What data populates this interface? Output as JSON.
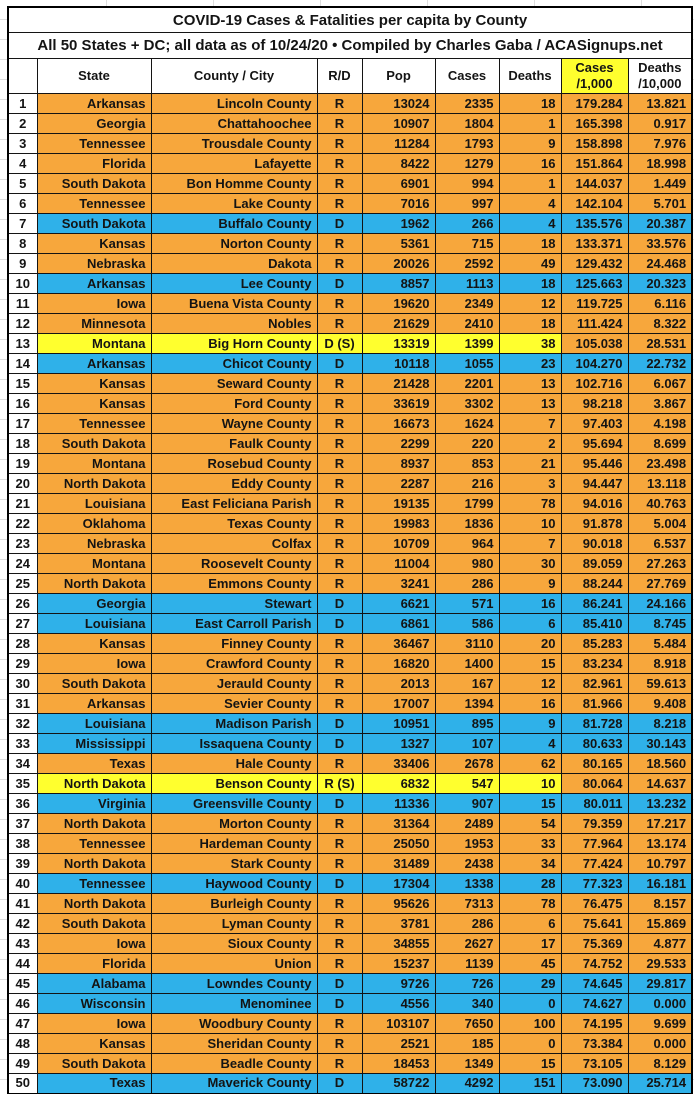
{
  "title": "COVID-19 Cases & Fatalities per capita by County",
  "subtitle": "All 50 States + DC; all data as of 10/24/20  • Compiled by Charles Gaba / ACASignups.net",
  "colors": {
    "republican_row": "#F7A73C",
    "democrat_row": "#2FB1E9",
    "special_row": "#FFFF2E",
    "cases_header_bg": "#FFFF2E",
    "border": "#141414"
  },
  "chart_data": {
    "type": "table",
    "columns": [
      "",
      "State",
      "County / City",
      "R/D",
      "Pop",
      "Cases",
      "Deaths",
      "Cases\n/1,000",
      "Deaths\n/10,000"
    ],
    "row_fields": [
      "rank",
      "state",
      "county",
      "rd",
      "pop",
      "cases",
      "deaths",
      "cases_per_1000",
      "deaths_per_10000",
      "row_color_key"
    ],
    "rows": [
      [
        1,
        "Arkansas",
        "Lincoln County",
        "R",
        "13024",
        "2335",
        "18",
        "179.284",
        "13.821",
        "R"
      ],
      [
        2,
        "Georgia",
        "Chattahoochee",
        "R",
        "10907",
        "1804",
        "1",
        "165.398",
        "0.917",
        "R"
      ],
      [
        3,
        "Tennessee",
        "Trousdale County",
        "R",
        "11284",
        "1793",
        "9",
        "158.898",
        "7.976",
        "R"
      ],
      [
        4,
        "Florida",
        "Lafayette",
        "R",
        "8422",
        "1279",
        "16",
        "151.864",
        "18.998",
        "R"
      ],
      [
        5,
        "South Dakota",
        "Bon Homme County",
        "R",
        "6901",
        "994",
        "1",
        "144.037",
        "1.449",
        "R"
      ],
      [
        6,
        "Tennessee",
        "Lake County",
        "R",
        "7016",
        "997",
        "4",
        "142.104",
        "5.701",
        "R"
      ],
      [
        7,
        "South Dakota",
        "Buffalo County",
        "D",
        "1962",
        "266",
        "4",
        "135.576",
        "20.387",
        "D"
      ],
      [
        8,
        "Kansas",
        "Norton County",
        "R",
        "5361",
        "715",
        "18",
        "133.371",
        "33.576",
        "R"
      ],
      [
        9,
        "Nebraska",
        "Dakota",
        "R",
        "20026",
        "2592",
        "49",
        "129.432",
        "24.468",
        "R"
      ],
      [
        10,
        "Arkansas",
        "Lee County",
        "D",
        "8857",
        "1113",
        "18",
        "125.663",
        "20.323",
        "D"
      ],
      [
        11,
        "Iowa",
        "Buena Vista County",
        "R",
        "19620",
        "2349",
        "12",
        "119.725",
        "6.116",
        "R"
      ],
      [
        12,
        "Minnesota",
        "Nobles",
        "R",
        "21629",
        "2410",
        "18",
        "111.424",
        "8.322",
        "R"
      ],
      [
        13,
        "Montana",
        "Big Horn County",
        "D (S)",
        "13319",
        "1399",
        "38",
        "105.038",
        "28.531",
        "S"
      ],
      [
        14,
        "Arkansas",
        "Chicot County",
        "D",
        "10118",
        "1055",
        "23",
        "104.270",
        "22.732",
        "D"
      ],
      [
        15,
        "Kansas",
        "Seward County",
        "R",
        "21428",
        "2201",
        "13",
        "102.716",
        "6.067",
        "R"
      ],
      [
        16,
        "Kansas",
        "Ford County",
        "R",
        "33619",
        "3302",
        "13",
        "98.218",
        "3.867",
        "R"
      ],
      [
        17,
        "Tennessee",
        "Wayne County",
        "R",
        "16673",
        "1624",
        "7",
        "97.403",
        "4.198",
        "R"
      ],
      [
        18,
        "South Dakota",
        "Faulk County",
        "R",
        "2299",
        "220",
        "2",
        "95.694",
        "8.699",
        "R"
      ],
      [
        19,
        "Montana",
        "Rosebud County",
        "R",
        "8937",
        "853",
        "21",
        "95.446",
        "23.498",
        "R"
      ],
      [
        20,
        "North Dakota",
        "Eddy County",
        "R",
        "2287",
        "216",
        "3",
        "94.447",
        "13.118",
        "R"
      ],
      [
        21,
        "Louisiana",
        "East Feliciana Parish",
        "R",
        "19135",
        "1799",
        "78",
        "94.016",
        "40.763",
        "R"
      ],
      [
        22,
        "Oklahoma",
        "Texas County",
        "R",
        "19983",
        "1836",
        "10",
        "91.878",
        "5.004",
        "R"
      ],
      [
        23,
        "Nebraska",
        "Colfax",
        "R",
        "10709",
        "964",
        "7",
        "90.018",
        "6.537",
        "R"
      ],
      [
        24,
        "Montana",
        "Roosevelt County",
        "R",
        "11004",
        "980",
        "30",
        "89.059",
        "27.263",
        "R"
      ],
      [
        25,
        "North Dakota",
        "Emmons County",
        "R",
        "3241",
        "286",
        "9",
        "88.244",
        "27.769",
        "R"
      ],
      [
        26,
        "Georgia",
        "Stewart",
        "D",
        "6621",
        "571",
        "16",
        "86.241",
        "24.166",
        "D"
      ],
      [
        27,
        "Louisiana",
        "East Carroll Parish",
        "D",
        "6861",
        "586",
        "6",
        "85.410",
        "8.745",
        "D"
      ],
      [
        28,
        "Kansas",
        "Finney County",
        "R",
        "36467",
        "3110",
        "20",
        "85.283",
        "5.484",
        "R"
      ],
      [
        29,
        "Iowa",
        "Crawford County",
        "R",
        "16820",
        "1400",
        "15",
        "83.234",
        "8.918",
        "R"
      ],
      [
        30,
        "South Dakota",
        "Jerauld County",
        "R",
        "2013",
        "167",
        "12",
        "82.961",
        "59.613",
        "R"
      ],
      [
        31,
        "Arkansas",
        "Sevier County",
        "R",
        "17007",
        "1394",
        "16",
        "81.966",
        "9.408",
        "R"
      ],
      [
        32,
        "Louisiana",
        "Madison Parish",
        "D",
        "10951",
        "895",
        "9",
        "81.728",
        "8.218",
        "D"
      ],
      [
        33,
        "Mississippi",
        "Issaquena County",
        "D",
        "1327",
        "107",
        "4",
        "80.633",
        "30.143",
        "D"
      ],
      [
        34,
        "Texas",
        "Hale County",
        "R",
        "33406",
        "2678",
        "62",
        "80.165",
        "18.560",
        "R"
      ],
      [
        35,
        "North Dakota",
        "Benson County",
        "R (S)",
        "6832",
        "547",
        "10",
        "80.064",
        "14.637",
        "S"
      ],
      [
        36,
        "Virginia",
        "Greensville County",
        "D",
        "11336",
        "907",
        "15",
        "80.011",
        "13.232",
        "D"
      ],
      [
        37,
        "North Dakota",
        "Morton County",
        "R",
        "31364",
        "2489",
        "54",
        "79.359",
        "17.217",
        "R"
      ],
      [
        38,
        "Tennessee",
        "Hardeman County",
        "R",
        "25050",
        "1953",
        "33",
        "77.964",
        "13.174",
        "R"
      ],
      [
        39,
        "North Dakota",
        "Stark County",
        "R",
        "31489",
        "2438",
        "34",
        "77.424",
        "10.797",
        "R"
      ],
      [
        40,
        "Tennessee",
        "Haywood County",
        "D",
        "17304",
        "1338",
        "28",
        "77.323",
        "16.181",
        "D"
      ],
      [
        41,
        "North Dakota",
        "Burleigh County",
        "R",
        "95626",
        "7313",
        "78",
        "76.475",
        "8.157",
        "R"
      ],
      [
        42,
        "South Dakota",
        "Lyman County",
        "R",
        "3781",
        "286",
        "6",
        "75.641",
        "15.869",
        "R"
      ],
      [
        43,
        "Iowa",
        "Sioux County",
        "R",
        "34855",
        "2627",
        "17",
        "75.369",
        "4.877",
        "R"
      ],
      [
        44,
        "Florida",
        "Union",
        "R",
        "15237",
        "1139",
        "45",
        "74.752",
        "29.533",
        "R"
      ],
      [
        45,
        "Alabama",
        "Lowndes County",
        "D",
        "9726",
        "726",
        "29",
        "74.645",
        "29.817",
        "D"
      ],
      [
        46,
        "Wisconsin",
        "Menominee",
        "D",
        "4556",
        "340",
        "0",
        "74.627",
        "0.000",
        "D"
      ],
      [
        47,
        "Iowa",
        "Woodbury County",
        "R",
        "103107",
        "7650",
        "100",
        "74.195",
        "9.699",
        "R"
      ],
      [
        48,
        "Kansas",
        "Sheridan County",
        "R",
        "2521",
        "185",
        "0",
        "73.384",
        "0.000",
        "R"
      ],
      [
        49,
        "South Dakota",
        "Beadle County",
        "R",
        "18453",
        "1349",
        "15",
        "73.105",
        "8.129",
        "R"
      ],
      [
        50,
        "Texas",
        "Maverick County",
        "D",
        "58722",
        "4292",
        "151",
        "73.090",
        "25.714",
        "D"
      ]
    ]
  }
}
